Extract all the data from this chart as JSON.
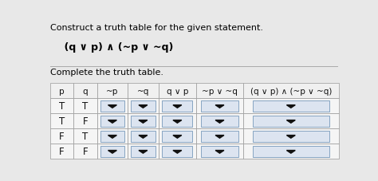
{
  "title1": "Construct a truth table for the given statement.",
  "formula": "    (q ∨ p) ∧ (~p ∨ ~q)",
  "subtitle": "Complete the truth table.",
  "col_headers": [
    "p",
    "q",
    "~p",
    "~q",
    "q ∨ p",
    "~p ∨ ~q",
    "(q ∨ p) ∧ (~p ∨ ~q)"
  ],
  "rows": [
    [
      "T",
      "T"
    ],
    [
      "T",
      "F"
    ],
    [
      "F",
      "T"
    ],
    [
      "F",
      "F"
    ]
  ],
  "dropdown_cols": [
    2,
    3,
    4,
    5,
    6
  ],
  "bg_color": "#e8e8e8",
  "table_bg": "#f0f0f0",
  "dropdown_bg": "#dce4f0",
  "header_bg": "#f0f0f0",
  "cell_text_color": "#111111",
  "border_color": "#999999",
  "font_size_header": 7.5,
  "font_size_text": 8.5,
  "font_size_title": 8.0,
  "font_size_formula": 9.0
}
